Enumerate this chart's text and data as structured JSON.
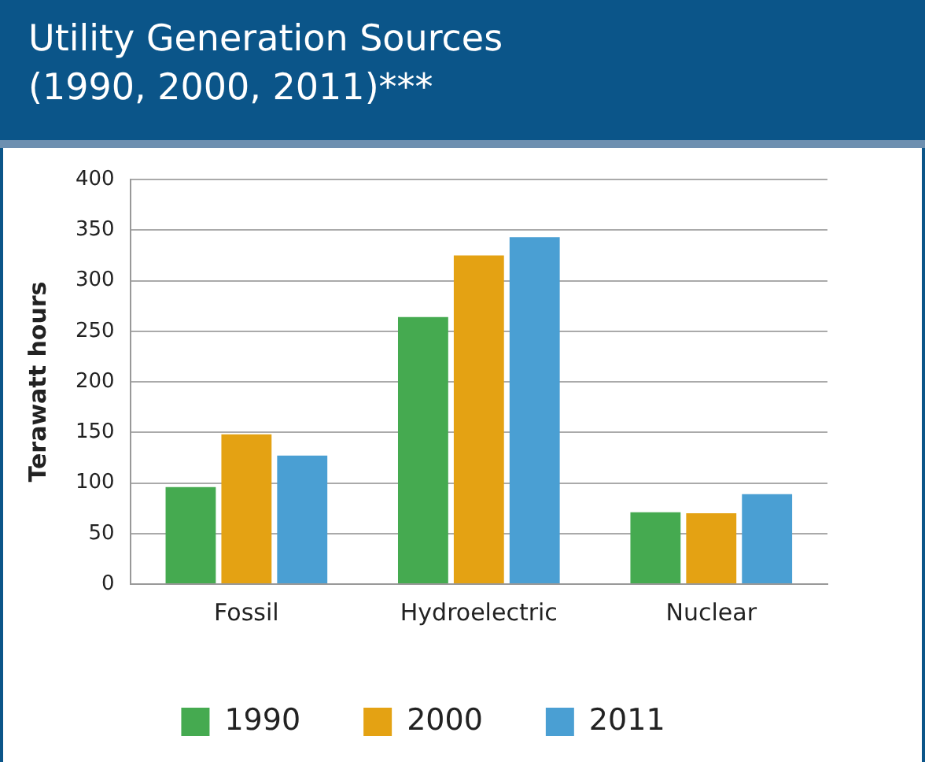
{
  "chart_data": {
    "type": "bar",
    "title": "Utility Generation Sources\n(1990, 2000, 2011)***",
    "ylabel": "Terawatt hours",
    "categories": [
      "Fossil",
      "Hydroelectric",
      "Nuclear"
    ],
    "series": [
      {
        "name": "1990",
        "color": "#45aa50",
        "values": [
          96,
          264,
          71
        ]
      },
      {
        "name": "2000",
        "color": "#e4a213",
        "values": [
          148,
          325,
          70
        ]
      },
      {
        "name": "2011",
        "color": "#4a9fd3",
        "values": [
          127,
          343,
          89
        ]
      }
    ],
    "ylim": [
      0,
      400
    ],
    "yticks": [
      0,
      50,
      100,
      150,
      200,
      250,
      300,
      350,
      400
    ],
    "grid": "y",
    "legend": "bottom"
  }
}
